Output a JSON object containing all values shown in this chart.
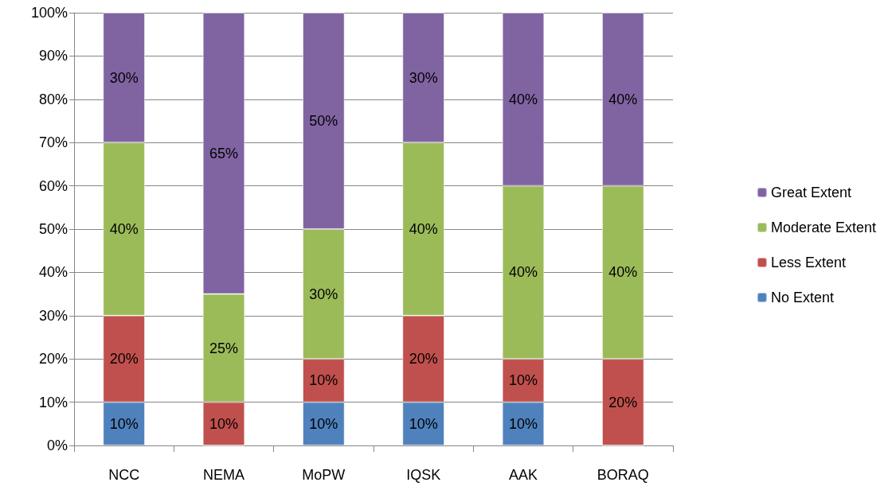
{
  "chart_data": {
    "type": "bar",
    "stacked": true,
    "categories": [
      "NCC",
      "NEMA",
      "MoPW",
      "IQSK",
      "AAK",
      "BORAQ"
    ],
    "series": [
      {
        "name": "No Extent",
        "color": "#4f81bd",
        "values": [
          10,
          0,
          10,
          10,
          10,
          0
        ],
        "value_labels": [
          "10%",
          null,
          "10%",
          "10%",
          "10%",
          null
        ]
      },
      {
        "name": "Less Extent",
        "color": "#c0504d",
        "values": [
          20,
          10,
          10,
          20,
          10,
          20
        ],
        "value_labels": [
          "20%",
          "10%",
          "10%",
          "20%",
          "10%",
          "20%"
        ]
      },
      {
        "name": "Moderate Extent",
        "color": "#9bbb59",
        "values": [
          40,
          25,
          30,
          40,
          40,
          40
        ],
        "value_labels": [
          "40%",
          "25%",
          "30%",
          "40%",
          "40%",
          "40%"
        ]
      },
      {
        "name": "Great Extent",
        "color": "#8064a2",
        "values": [
          30,
          65,
          50,
          30,
          40,
          40
        ],
        "value_labels": [
          "30%",
          "65%",
          "50%",
          "30%",
          "40%",
          "40%"
        ]
      }
    ],
    "ylim": [
      0,
      100
    ],
    "yticks": [
      {
        "value": 0,
        "label": "0%"
      },
      {
        "value": 10,
        "label": "10%"
      },
      {
        "value": 20,
        "label": "20%"
      },
      {
        "value": 30,
        "label": "30%"
      },
      {
        "value": 40,
        "label": "40%"
      },
      {
        "value": 50,
        "label": "50%"
      },
      {
        "value": 60,
        "label": "60%"
      },
      {
        "value": 70,
        "label": "70%"
      },
      {
        "value": 80,
        "label": "80%"
      },
      {
        "value": 90,
        "label": "90%"
      },
      {
        "value": 100,
        "label": "100%"
      }
    ],
    "grid": "y",
    "legend": "right"
  }
}
